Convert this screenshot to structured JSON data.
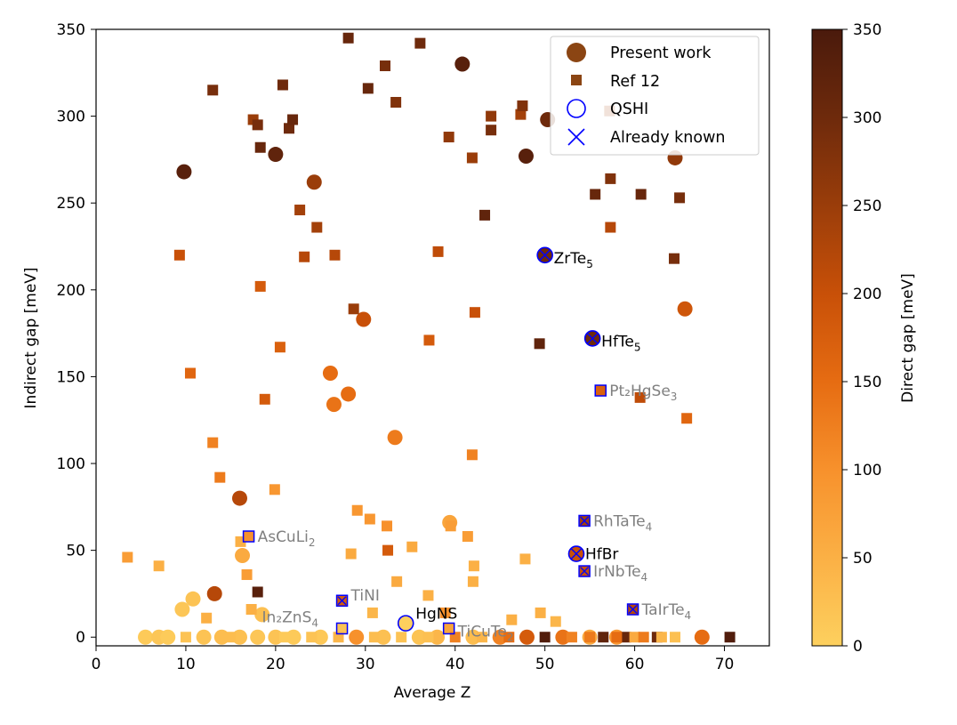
{
  "chart_data": {
    "type": "scatter",
    "xlabel": "Average Z",
    "ylabel": "Indirect gap [meV]",
    "xlim": [
      0,
      75
    ],
    "ylim": [
      -5,
      350
    ],
    "xticks": [
      0,
      10,
      20,
      30,
      40,
      50,
      60,
      70
    ],
    "yticks": [
      0,
      50,
      100,
      150,
      200,
      250,
      300,
      350
    ],
    "grid": false,
    "legend_position": "top-right",
    "colorbar": {
      "label": "Direct gap [meV]",
      "range": [
        0,
        350
      ],
      "ticks": [
        0,
        50,
        100,
        150,
        200,
        250,
        300,
        350
      ],
      "colormap": [
        "#fdd05e",
        "#fbb045",
        "#f7912c",
        "#e66c12",
        "#c85008",
        "#9a3d0a",
        "#6e2a0c",
        "#4a1a0c"
      ]
    },
    "legend": [
      {
        "label": "Present work",
        "marker": "circle",
        "color": "#8b4513"
      },
      {
        "label": "Ref 12",
        "marker": "square",
        "color": "#8b4513"
      },
      {
        "label": "QSHI",
        "marker": "open-circle",
        "color": "#0000ff"
      },
      {
        "label": "Already known",
        "marker": "x",
        "color": "#0000ff"
      }
    ],
    "series": [
      {
        "name": "Present work",
        "marker": "circle",
        "points": [
          {
            "x": 9.8,
            "y": 268,
            "c": 330
          },
          {
            "x": 20,
            "y": 278,
            "c": 320
          },
          {
            "x": 24.3,
            "y": 262,
            "c": 250
          },
          {
            "x": 40.8,
            "y": 330,
            "c": 330
          },
          {
            "x": 47.9,
            "y": 277,
            "c": 330
          },
          {
            "x": 50.3,
            "y": 298,
            "c": 300
          },
          {
            "x": 64.5,
            "y": 276,
            "c": 260
          },
          {
            "x": 65.6,
            "y": 189,
            "c": 190
          },
          {
            "x": 29.8,
            "y": 183,
            "c": 200
          },
          {
            "x": 26.1,
            "y": 152,
            "c": 150
          },
          {
            "x": 26.5,
            "y": 134,
            "c": 140
          },
          {
            "x": 28.1,
            "y": 140,
            "c": 150
          },
          {
            "x": 33.3,
            "y": 115,
            "c": 130
          },
          {
            "x": 16,
            "y": 80,
            "c": 220
          },
          {
            "x": 13.2,
            "y": 25,
            "c": 220
          },
          {
            "x": 16.3,
            "y": 47,
            "c": 60
          },
          {
            "x": 39.4,
            "y": 66,
            "c": 70
          },
          {
            "x": 10.8,
            "y": 22,
            "c": 20
          },
          {
            "x": 9.6,
            "y": 16,
            "c": 15
          },
          {
            "x": 18.5,
            "y": 13,
            "c": 25
          },
          {
            "x": 53.5,
            "y": 48,
            "c": 200
          },
          {
            "x": 50,
            "y": 220,
            "c": 300
          },
          {
            "x": 55.3,
            "y": 172,
            "c": 300
          },
          {
            "x": 34.5,
            "y": 8,
            "c": 0
          },
          {
            "x": 67.5,
            "y": 0,
            "c": 150
          },
          {
            "x": 5.5,
            "y": 0,
            "c": 10
          },
          {
            "x": 7,
            "y": 0,
            "c": 15
          },
          {
            "x": 8,
            "y": 0,
            "c": 8
          },
          {
            "x": 12,
            "y": 0,
            "c": 20
          },
          {
            "x": 14,
            "y": 0,
            "c": 30
          },
          {
            "x": 16,
            "y": 0,
            "c": 25
          },
          {
            "x": 18,
            "y": 0,
            "c": 15
          },
          {
            "x": 20,
            "y": 0,
            "c": 20
          },
          {
            "x": 22,
            "y": 0,
            "c": 10
          },
          {
            "x": 25,
            "y": 0,
            "c": 12
          },
          {
            "x": 29,
            "y": 0,
            "c": 100
          },
          {
            "x": 32,
            "y": 0,
            "c": 25
          },
          {
            "x": 36,
            "y": 0,
            "c": 20
          },
          {
            "x": 38,
            "y": 0,
            "c": 40
          },
          {
            "x": 42,
            "y": 0,
            "c": 30
          },
          {
            "x": 45,
            "y": 0,
            "c": 120
          },
          {
            "x": 48,
            "y": 0,
            "c": 180
          },
          {
            "x": 52,
            "y": 0,
            "c": 140
          },
          {
            "x": 55,
            "y": 0,
            "c": 60
          },
          {
            "x": 58,
            "y": 0,
            "c": 90
          }
        ]
      },
      {
        "name": "Ref 12",
        "marker": "square",
        "points": [
          {
            "x": 13,
            "y": 315,
            "c": 290
          },
          {
            "x": 17.5,
            "y": 298,
            "c": 250
          },
          {
            "x": 18,
            "y": 295,
            "c": 290
          },
          {
            "x": 18.3,
            "y": 282,
            "c": 310
          },
          {
            "x": 20.8,
            "y": 318,
            "c": 300
          },
          {
            "x": 21.5,
            "y": 293,
            "c": 300
          },
          {
            "x": 21.9,
            "y": 298,
            "c": 310
          },
          {
            "x": 28.1,
            "y": 345,
            "c": 310
          },
          {
            "x": 30.3,
            "y": 316,
            "c": 310
          },
          {
            "x": 32.2,
            "y": 329,
            "c": 290
          },
          {
            "x": 33.4,
            "y": 308,
            "c": 280
          },
          {
            "x": 36.1,
            "y": 342,
            "c": 300
          },
          {
            "x": 39.3,
            "y": 288,
            "c": 260
          },
          {
            "x": 41.9,
            "y": 276,
            "c": 250
          },
          {
            "x": 44,
            "y": 300,
            "c": 260
          },
          {
            "x": 44,
            "y": 292,
            "c": 290
          },
          {
            "x": 47.3,
            "y": 301,
            "c": 240
          },
          {
            "x": 47.5,
            "y": 306,
            "c": 280
          },
          {
            "x": 57.2,
            "y": 303,
            "c": 240
          },
          {
            "x": 43.3,
            "y": 243,
            "c": 320
          },
          {
            "x": 55.6,
            "y": 255,
            "c": 310
          },
          {
            "x": 57.3,
            "y": 264,
            "c": 280
          },
          {
            "x": 60.7,
            "y": 255,
            "c": 310
          },
          {
            "x": 65,
            "y": 253,
            "c": 290
          },
          {
            "x": 22.7,
            "y": 246,
            "c": 240
          },
          {
            "x": 24.6,
            "y": 236,
            "c": 240
          },
          {
            "x": 23.2,
            "y": 219,
            "c": 220
          },
          {
            "x": 26.6,
            "y": 220,
            "c": 220
          },
          {
            "x": 38.1,
            "y": 222,
            "c": 210
          },
          {
            "x": 57.3,
            "y": 236,
            "c": 220
          },
          {
            "x": 64.4,
            "y": 218,
            "c": 290
          },
          {
            "x": 9.3,
            "y": 220,
            "c": 200
          },
          {
            "x": 18.3,
            "y": 202,
            "c": 180
          },
          {
            "x": 28.7,
            "y": 189,
            "c": 250
          },
          {
            "x": 42.2,
            "y": 187,
            "c": 200
          },
          {
            "x": 49.4,
            "y": 169,
            "c": 320
          },
          {
            "x": 20.5,
            "y": 167,
            "c": 170
          },
          {
            "x": 37.1,
            "y": 171,
            "c": 180
          },
          {
            "x": 10.5,
            "y": 152,
            "c": 160
          },
          {
            "x": 18.8,
            "y": 137,
            "c": 180
          },
          {
            "x": 60.6,
            "y": 138,
            "c": 210
          },
          {
            "x": 65.8,
            "y": 126,
            "c": 160
          },
          {
            "x": 13,
            "y": 112,
            "c": 120
          },
          {
            "x": 13.8,
            "y": 92,
            "c": 130
          },
          {
            "x": 41.9,
            "y": 105,
            "c": 120
          },
          {
            "x": 19.9,
            "y": 85,
            "c": 90
          },
          {
            "x": 29.1,
            "y": 73,
            "c": 90
          },
          {
            "x": 30.5,
            "y": 68,
            "c": 90
          },
          {
            "x": 32.4,
            "y": 64,
            "c": 100
          },
          {
            "x": 39.5,
            "y": 64,
            "c": 80
          },
          {
            "x": 41.4,
            "y": 58,
            "c": 80
          },
          {
            "x": 35.2,
            "y": 52,
            "c": 60
          },
          {
            "x": 28.4,
            "y": 48,
            "c": 60
          },
          {
            "x": 32.5,
            "y": 50,
            "c": 180
          },
          {
            "x": 42.1,
            "y": 41,
            "c": 50
          },
          {
            "x": 47.8,
            "y": 45,
            "c": 50
          },
          {
            "x": 3.5,
            "y": 46,
            "c": 80
          },
          {
            "x": 7,
            "y": 41,
            "c": 50
          },
          {
            "x": 16.1,
            "y": 55,
            "c": 50
          },
          {
            "x": 16.8,
            "y": 36,
            "c": 80
          },
          {
            "x": 33.5,
            "y": 32,
            "c": 60
          },
          {
            "x": 42,
            "y": 32,
            "c": 50
          },
          {
            "x": 37,
            "y": 24,
            "c": 50
          },
          {
            "x": 18,
            "y": 26,
            "c": 330
          },
          {
            "x": 12.3,
            "y": 11,
            "c": 50
          },
          {
            "x": 17.3,
            "y": 16,
            "c": 50
          },
          {
            "x": 30.8,
            "y": 14,
            "c": 40
          },
          {
            "x": 38.9,
            "y": 14,
            "c": 100
          },
          {
            "x": 46.3,
            "y": 10,
            "c": 50
          },
          {
            "x": 49.5,
            "y": 14,
            "c": 50
          },
          {
            "x": 51.2,
            "y": 9,
            "c": 40
          },
          {
            "x": 56.2,
            "y": 142,
            "c": 170
          },
          {
            "x": 54.4,
            "y": 67,
            "c": 240
          },
          {
            "x": 54.4,
            "y": 38,
            "c": 200
          },
          {
            "x": 59.8,
            "y": 16,
            "c": 220
          },
          {
            "x": 27.4,
            "y": 21,
            "c": 180
          },
          {
            "x": 17,
            "y": 58,
            "c": 100
          },
          {
            "x": 27.4,
            "y": 5,
            "c": 20
          },
          {
            "x": 39.3,
            "y": 5,
            "c": 70
          },
          {
            "x": 50,
            "y": 0,
            "c": 340
          },
          {
            "x": 56.5,
            "y": 0,
            "c": 320
          },
          {
            "x": 59,
            "y": 0,
            "c": 310
          },
          {
            "x": 62.5,
            "y": 0,
            "c": 300
          },
          {
            "x": 70.6,
            "y": 0,
            "c": 340
          },
          {
            "x": 10,
            "y": 0,
            "c": 20
          },
          {
            "x": 15,
            "y": 0,
            "c": 30
          },
          {
            "x": 21,
            "y": 0,
            "c": 10
          },
          {
            "x": 24,
            "y": 0,
            "c": 20
          },
          {
            "x": 27,
            "y": 0,
            "c": 40
          },
          {
            "x": 31,
            "y": 0,
            "c": 30
          },
          {
            "x": 34,
            "y": 0,
            "c": 20
          },
          {
            "x": 37,
            "y": 0,
            "c": 25
          },
          {
            "x": 40,
            "y": 0,
            "c": 120
          },
          {
            "x": 43,
            "y": 0,
            "c": 40
          },
          {
            "x": 46,
            "y": 0,
            "c": 150
          },
          {
            "x": 53,
            "y": 0,
            "c": 120
          },
          {
            "x": 55,
            "y": 0,
            "c": 130
          },
          {
            "x": 58,
            "y": 0,
            "c": 150
          },
          {
            "x": 60,
            "y": 0,
            "c": 60
          },
          {
            "x": 61,
            "y": 0,
            "c": 130
          },
          {
            "x": 63,
            "y": 0,
            "c": 40
          },
          {
            "x": 64.5,
            "y": 0,
            "c": 25
          }
        ]
      }
    ],
    "markers_overlay": [
      {
        "x": 50,
        "y": 220,
        "kind": "known",
        "shape": "circle"
      },
      {
        "x": 55.3,
        "y": 172,
        "kind": "known",
        "shape": "circle"
      },
      {
        "x": 53.5,
        "y": 48,
        "kind": "known",
        "shape": "circle"
      },
      {
        "x": 34.5,
        "y": 8,
        "kind": "qshi",
        "shape": "circle"
      },
      {
        "x": 56.2,
        "y": 142,
        "kind": "qshi",
        "shape": "square"
      },
      {
        "x": 54.4,
        "y": 67,
        "kind": "known",
        "shape": "square"
      },
      {
        "x": 54.4,
        "y": 38,
        "kind": "known",
        "shape": "square"
      },
      {
        "x": 59.8,
        "y": 16,
        "kind": "known",
        "shape": "square"
      },
      {
        "x": 27.4,
        "y": 21,
        "kind": "known",
        "shape": "square"
      },
      {
        "x": 17,
        "y": 58,
        "kind": "qshi",
        "shape": "square"
      },
      {
        "x": 27.4,
        "y": 5,
        "kind": "qshi",
        "shape": "square"
      },
      {
        "x": 39.3,
        "y": 5,
        "kind": "qshi",
        "shape": "square"
      }
    ],
    "annotations": [
      {
        "name": "ZrTe",
        "sub": "5",
        "x": 50,
        "y": 220,
        "dx": 10,
        "dy": 3,
        "color": "#000000"
      },
      {
        "name": "HfTe",
        "sub": "5",
        "x": 55.3,
        "y": 172,
        "dx": 10,
        "dy": 3,
        "color": "#000000"
      },
      {
        "name": "HfBr",
        "sub": "",
        "x": 53.5,
        "y": 48,
        "dx": 10,
        "dy": 0,
        "color": "#000000"
      },
      {
        "name": "HgNS",
        "sub": "",
        "x": 34.5,
        "y": 8,
        "dx": 11,
        "dy": -11,
        "color": "#000000"
      },
      {
        "name": "Pt₂HgSe",
        "sub": "3",
        "x": 56.2,
        "y": 142,
        "dx": 10,
        "dy": 0,
        "color": "#808080"
      },
      {
        "name": "RhTaTe",
        "sub": "4",
        "x": 54.4,
        "y": 67,
        "dx": 10,
        "dy": 0,
        "color": "#808080"
      },
      {
        "name": "IrNbTe",
        "sub": "4",
        "x": 54.4,
        "y": 38,
        "dx": 10,
        "dy": 0,
        "color": "#808080"
      },
      {
        "name": "TaIrTe",
        "sub": "4",
        "x": 59.8,
        "y": 16,
        "dx": 10,
        "dy": 0,
        "color": "#808080"
      },
      {
        "name": "TiNI",
        "sub": "",
        "x": 27.4,
        "y": 21,
        "dx": 10,
        "dy": -6,
        "color": "#808080"
      },
      {
        "name": "AsCuLi",
        "sub": "2",
        "x": 17,
        "y": 58,
        "dx": 10,
        "dy": 0,
        "color": "#808080"
      },
      {
        "name": "In₂ZnS",
        "sub": "4",
        "x": 27.4,
        "y": 5,
        "dx": -90,
        "dy": -13,
        "color": "#808080"
      },
      {
        "name": "TiCuTe",
        "sub": "2",
        "x": 39.3,
        "y": 5,
        "dx": 10,
        "dy": 3,
        "color": "#808080"
      }
    ]
  }
}
